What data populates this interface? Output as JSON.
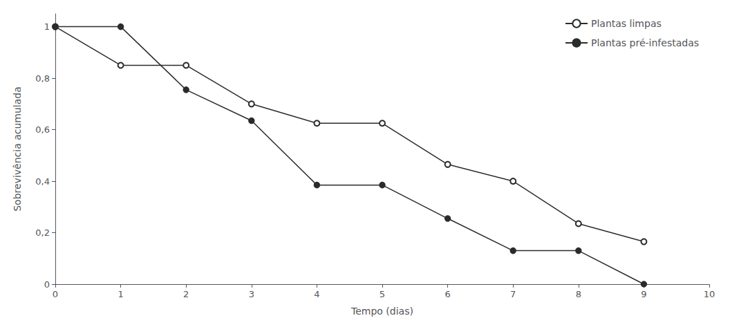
{
  "chart_data": {
    "type": "line",
    "xlabel": "Tempo (dias)",
    "ylabel": "Sobrevivência acumulada",
    "x": [
      0,
      1,
      2,
      3,
      4,
      5,
      6,
      7,
      8,
      9
    ],
    "series": [
      {
        "name": "Plantas limpas",
        "color": "#2b2b2b",
        "marker": "emptyCircle",
        "values": [
          1.0,
          0.85,
          0.85,
          0.7,
          0.625,
          0.625,
          0.465,
          0.4,
          0.235,
          0.165
        ]
      },
      {
        "name": "Plantas pré-infestadas",
        "color": "#2b2b2b",
        "marker": "circle",
        "values": [
          1.0,
          1.0,
          0.755,
          0.635,
          0.385,
          0.385,
          0.255,
          0.13,
          0.13,
          0.0
        ]
      }
    ],
    "xlim": [
      0,
      10
    ],
    "xticks": [
      0,
      1,
      2,
      3,
      4,
      5,
      6,
      7,
      8,
      9,
      10
    ],
    "ylim": [
      0,
      1.05
    ],
    "yticks": [
      0,
      {
        "value": 0.2,
        "label": "0,2"
      },
      {
        "value": 0.4,
        "label": "0,4"
      },
      {
        "value": 0.6,
        "label": "0,6"
      },
      {
        "value": 0.8,
        "label": "0,8"
      },
      1
    ],
    "grid": false,
    "legend": "upper right"
  }
}
